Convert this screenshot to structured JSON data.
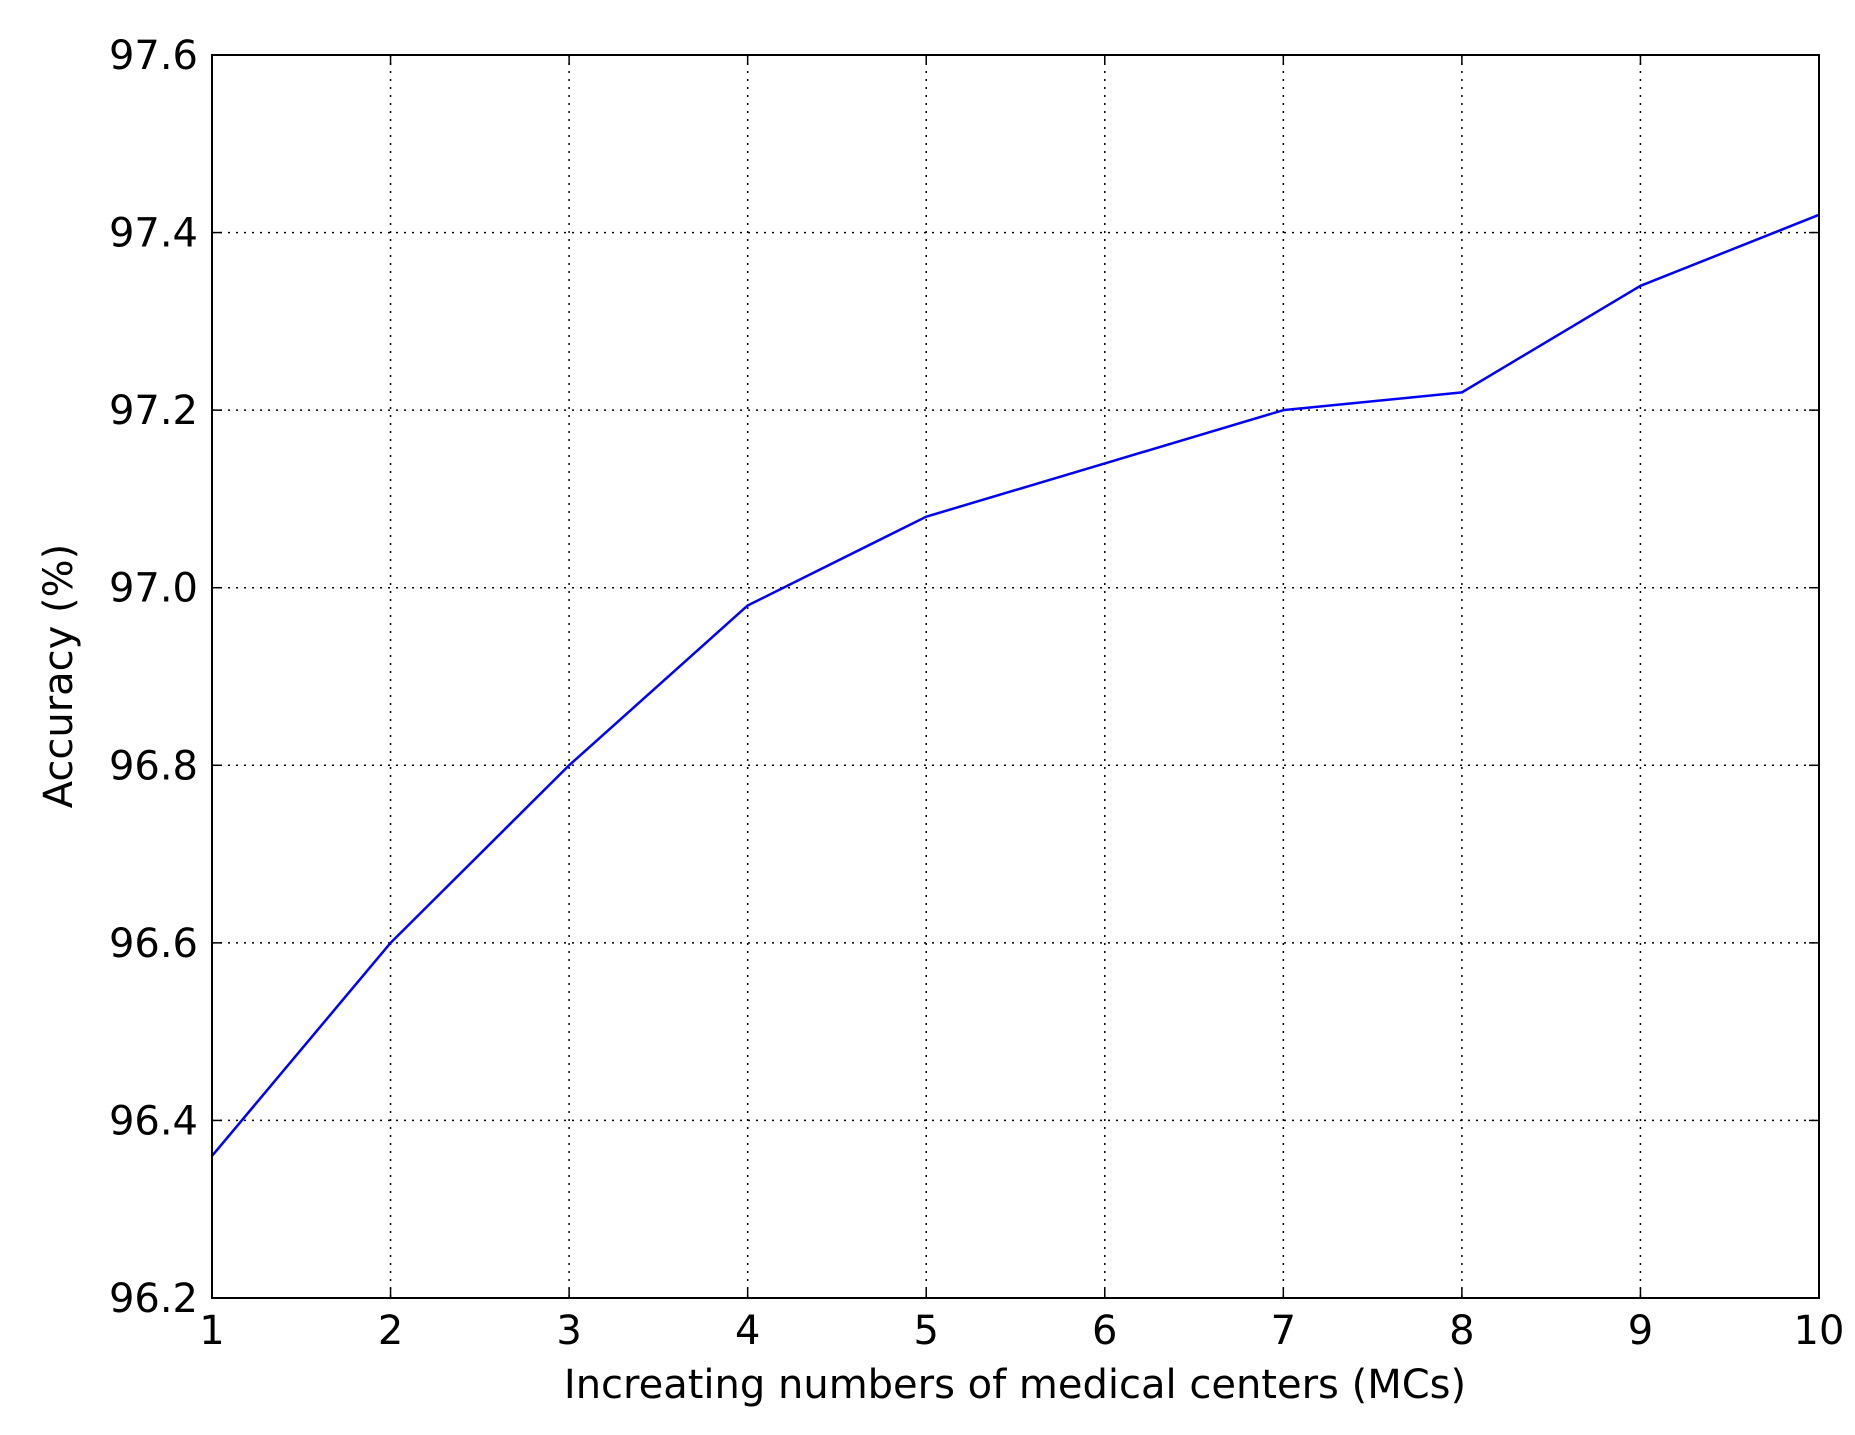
{
  "chart_data": {
    "type": "line",
    "x_label": "Increating numbers of medical centers (MCs)",
    "y_label": "Accuracy (%)",
    "x": [
      1,
      2,
      3,
      4,
      5,
      6,
      7,
      8,
      9,
      10
    ],
    "series": [
      {
        "name": "Accuracy",
        "color": "#0000ff",
        "values": [
          96.36,
          96.6,
          96.8,
          96.98,
          97.08,
          97.14,
          97.2,
          97.22,
          97.34,
          97.42
        ]
      }
    ],
    "xlim": [
      1,
      10
    ],
    "xticks": [
      1,
      2,
      3,
      4,
      5,
      6,
      7,
      8,
      9,
      10
    ],
    "ylim": [
      96.2,
      97.6
    ],
    "yticks": [
      96.2,
      96.4,
      96.6,
      96.8,
      {
        "value": 97.0,
        "label": "97.0"
      },
      97.2,
      97.4,
      97.6
    ],
    "grid": true
  }
}
